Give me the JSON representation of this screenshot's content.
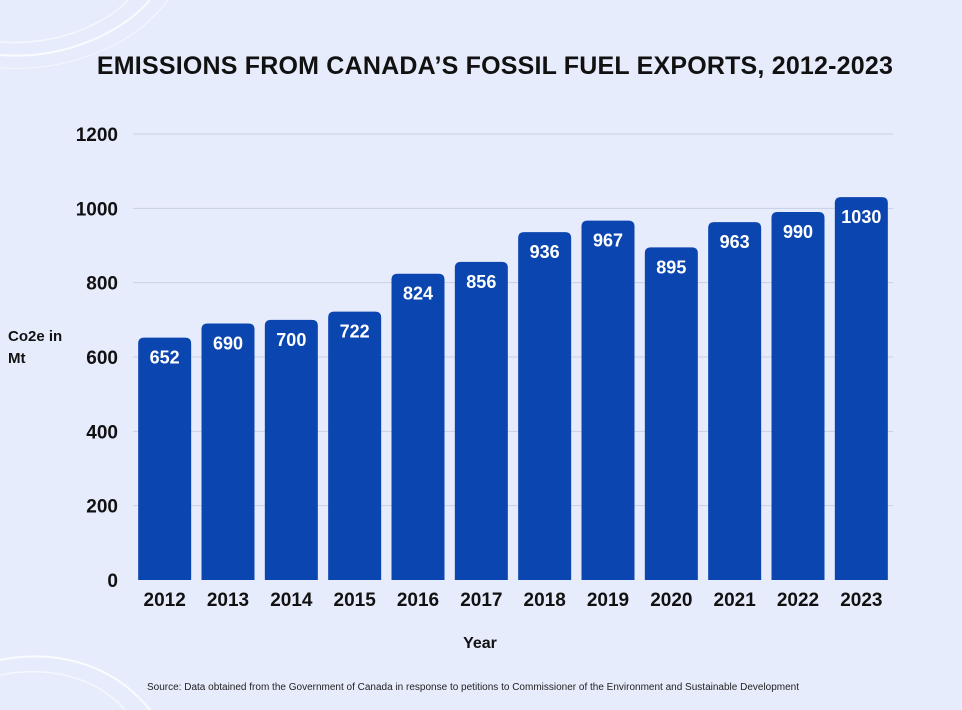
{
  "colors": {
    "background": "#e7ecfc",
    "bar": "#0b45b0",
    "grid": "#c9cfe4",
    "text": "#111111",
    "bar_label": "#ffffff"
  },
  "chart_data": {
    "type": "bar",
    "title": "EMISSIONS FROM CANADA’S FOSSIL FUEL EXPORTS, 2012-2023",
    "xlabel": "Year",
    "ylabel": "Co2e in Mt",
    "categories": [
      "2012",
      "2013",
      "2014",
      "2015",
      "2016",
      "2017",
      "2018",
      "2019",
      "2020",
      "2021",
      "2022",
      "2023"
    ],
    "values": [
      652,
      690,
      700,
      722,
      824,
      856,
      936,
      967,
      895,
      963,
      990,
      1030
    ],
    "ylim": [
      0,
      1200
    ],
    "yticks": [
      0,
      200,
      400,
      600,
      800,
      1000,
      1200
    ],
    "grid": true,
    "data_labels": true,
    "legend": "none"
  },
  "source": "Source: Data obtained from the Government of Canada in response to petitions to Commissioner of the Environment and Sustainable Development"
}
